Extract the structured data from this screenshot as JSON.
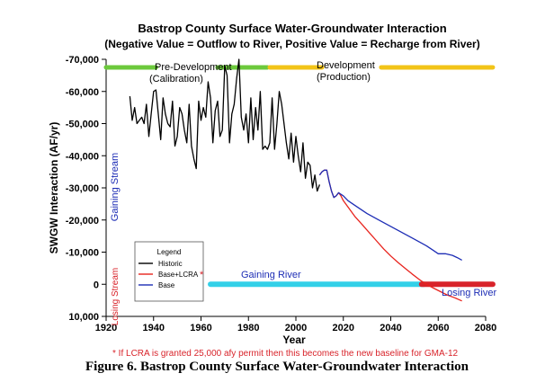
{
  "chart_data": {
    "type": "line",
    "title": "Bastrop County Surface Water-Groundwater Interaction",
    "subtitle": "(Negative Value = Outflow to River, Positive Value = Recharge from River)",
    "xlabel": "Year",
    "ylabel": "SWGW Interaction (AF/yr)",
    "xlim": [
      1920,
      2080
    ],
    "ylim": [
      -70000,
      10000
    ],
    "y_inverted": true,
    "x_ticks": [
      "1920",
      "1940",
      "1960",
      "1980",
      "2000",
      "2020",
      "2040",
      "2060",
      "2080"
    ],
    "y_ticks": [
      "-70,000",
      "-60,000",
      "-50,000",
      "-40,000",
      "-30,000",
      "-20,000",
      "-10,000",
      "0",
      "10,000"
    ],
    "legend": {
      "title": "Legend",
      "placement": "lower-left",
      "entries": [
        "Historic",
        "Base+LCRA",
        "Base"
      ],
      "asterisk": "*"
    },
    "series": [
      {
        "name": "Historic",
        "color": "#000000",
        "x": [
          1930,
          1931,
          1932,
          1933,
          1934,
          1935,
          1936,
          1937,
          1938,
          1939,
          1940,
          1941,
          1942,
          1943,
          1944,
          1945,
          1946,
          1947,
          1948,
          1949,
          1950,
          1951,
          1952,
          1953,
          1954,
          1955,
          1956,
          1957,
          1958,
          1959,
          1960,
          1961,
          1962,
          1963,
          1964,
          1965,
          1966,
          1967,
          1968,
          1969,
          1970,
          1971,
          1972,
          1973,
          1974,
          1975,
          1976,
          1977,
          1978,
          1979,
          1980,
          1981,
          1982,
          1983,
          1984,
          1985,
          1986,
          1987,
          1988,
          1989,
          1990,
          1991,
          1992,
          1993,
          1994,
          1995,
          1996,
          1997,
          1998,
          1999,
          2000,
          2001,
          2002,
          2003,
          2004,
          2005,
          2006,
          2007,
          2008,
          2009,
          2010
        ],
        "y": [
          -58500,
          -51000,
          -55000,
          -50000,
          -51000,
          -52000,
          -50000,
          -56000,
          -46000,
          -53000,
          -60000,
          -60500,
          -53000,
          -45000,
          -58000,
          -53000,
          -50000,
          -49000,
          -57000,
          -43000,
          -46000,
          -55000,
          -53000,
          -48000,
          -44000,
          -56000,
          -43000,
          -39000,
          -36000,
          -57000,
          -51000,
          -55000,
          -52000,
          -63000,
          -58000,
          -44000,
          -54000,
          -57000,
          -46000,
          -48000,
          -68000,
          -65000,
          -44000,
          -53000,
          -56000,
          -64000,
          -70000,
          -52000,
          -48000,
          -53000,
          -44000,
          -58000,
          -45000,
          -55000,
          -48000,
          -60000,
          -42000,
          -43000,
          -42000,
          -44000,
          -58000,
          -42000,
          -50000,
          -60000,
          -56000,
          -50000,
          -44000,
          -39000,
          -47000,
          -38000,
          -46000,
          -40000,
          -35000,
          -44000,
          -33000,
          -38000,
          -37000,
          -30000,
          -34000,
          -29000,
          -31000
        ]
      },
      {
        "name": "Base+LCRA",
        "color": "#e8231d",
        "x": [
          2010,
          2011,
          2012,
          2013,
          2014,
          2015,
          2016,
          2017,
          2018,
          2019,
          2020,
          2022,
          2025,
          2028,
          2031,
          2034,
          2037,
          2040,
          2043,
          2046,
          2049,
          2052,
          2055,
          2058,
          2061,
          2064,
          2067,
          2070
        ],
        "y": [
          -34000,
          -35000,
          -35500,
          -35500,
          -32000,
          -29000,
          -27000,
          -27500,
          -28500,
          -27500,
          -26000,
          -24000,
          -21000,
          -18500,
          -16000,
          -13500,
          -11000,
          -8800,
          -6800,
          -5000,
          -3200,
          -1500,
          0,
          1200,
          2300,
          3400,
          4200,
          5200
        ]
      },
      {
        "name": "Base",
        "color": "#1d2db5",
        "x": [
          2010,
          2011,
          2012,
          2013,
          2014,
          2015,
          2016,
          2017,
          2018,
          2019,
          2020,
          2022,
          2025,
          2030,
          2035,
          2040,
          2045,
          2050,
          2055,
          2058,
          2060,
          2063,
          2066,
          2068,
          2070
        ],
        "y": [
          -34000,
          -35000,
          -35500,
          -35500,
          -32000,
          -29000,
          -27000,
          -27500,
          -28500,
          -28000,
          -27500,
          -26000,
          -24500,
          -22000,
          -20000,
          -18000,
          -16000,
          -14000,
          -12000,
          -10500,
          -9500,
          -9500,
          -9000,
          -8300,
          -7500
        ]
      }
    ],
    "annotations": {
      "gaining_stream": "Gaining Stream",
      "losing_stream": "Losing Stream",
      "gaining_river": "Gaining River",
      "losing_river": "Losing River",
      "pre_development_line1": "Pre-Development",
      "pre_development_line2": "(Calibration)",
      "development_line1": "Development",
      "development_line2": "(Production)",
      "footnote": "* If LCRA is granted 25,000 afy permit then this becomes the new baseline for GMA-12"
    },
    "bars": {
      "pre_development": {
        "color": "#6cc93c",
        "segments": [
          [
            1920,
            1941
          ],
          [
            1967,
            1988
          ]
        ]
      },
      "development": {
        "color": "#f2c418",
        "segments": [
          [
            1989,
            2011
          ],
          [
            2036,
            2083
          ]
        ]
      },
      "gaining_river": {
        "color": "#33d0e8",
        "range": [
          1964,
          2054
        ]
      },
      "losing_river": {
        "color": "#d8232a",
        "range": [
          2053,
          2083
        ]
      }
    }
  },
  "caption": "Figure 6.  Bastrop County Surface Water-Groundwater Interaction"
}
